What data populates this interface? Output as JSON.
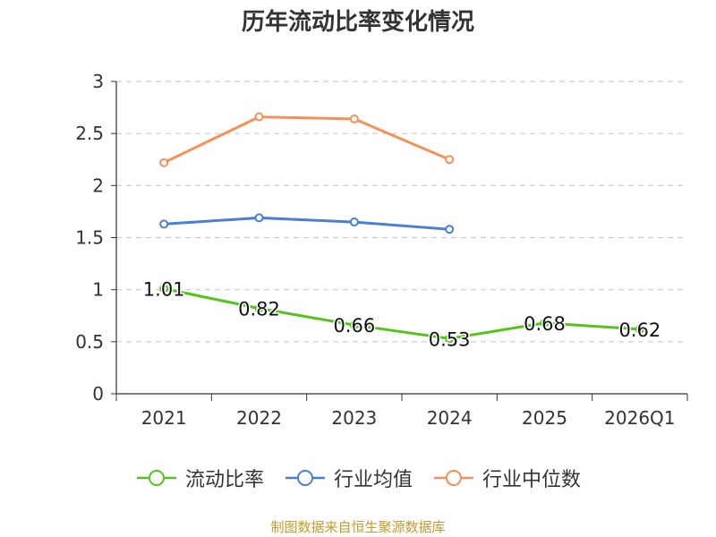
{
  "chart_data": {
    "type": "line",
    "title": "历年流动比率变化情况",
    "categories": [
      "2021",
      "2022",
      "2023",
      "2024",
      "2025",
      "2026Q1"
    ],
    "ylim": [
      0,
      3
    ],
    "y_ticks": [
      "0",
      "0.5",
      "1",
      "1.5",
      "2",
      "2.5",
      "3"
    ],
    "grid": true,
    "legend_position": "bottom",
    "series": [
      {
        "name": "流动比率",
        "color": "#52c41a",
        "values": [
          1.01,
          0.82,
          0.66,
          0.53,
          0.68,
          0.62
        ],
        "labels": [
          "1.01",
          "0.82",
          "0.66",
          "0.53",
          "0.68",
          "0.62"
        ]
      },
      {
        "name": "行业均值",
        "color": "#4a7fd6",
        "values": [
          1.63,
          1.69,
          1.65,
          1.58,
          null,
          null
        ]
      },
      {
        "name": "行业中位数",
        "color": "#f5905b",
        "values": [
          2.22,
          2.66,
          2.64,
          2.25,
          null,
          null
        ]
      }
    ]
  },
  "source": "制图数据来自恒生聚源数据库"
}
